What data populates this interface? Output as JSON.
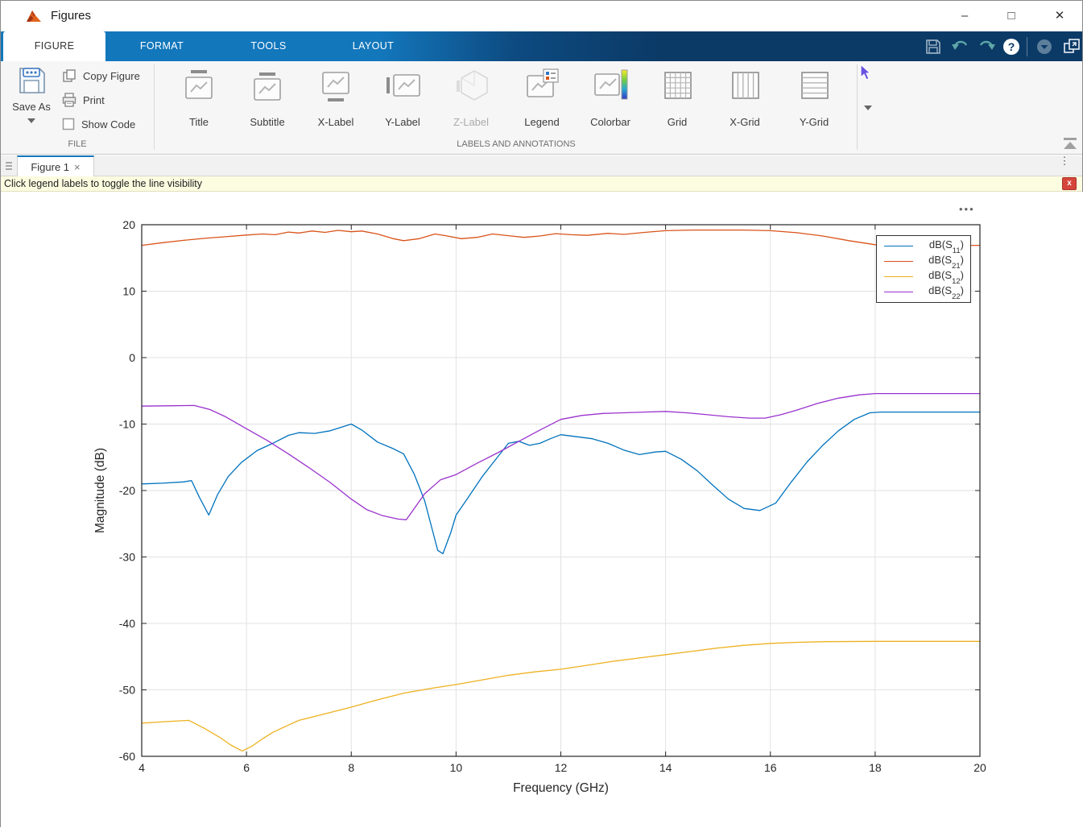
{
  "window": {
    "title": "Figures"
  },
  "ribbon_tabs": [
    {
      "label": "FIGURE",
      "active": true
    },
    {
      "label": "FORMAT",
      "active": false
    },
    {
      "label": "TOOLS",
      "active": false
    },
    {
      "label": "LAYOUT",
      "active": false
    }
  ],
  "ribbon": {
    "file_section": {
      "section_label": "FILE",
      "save_as": "Save As",
      "copy_figure": "Copy Figure",
      "print": "Print",
      "show_code": "Show Code",
      "show_code_checked": false
    },
    "labels_section": {
      "section_label": "LABELS AND ANNOTATIONS",
      "items": [
        {
          "label": "Title",
          "disabled": false
        },
        {
          "label": "Subtitle",
          "disabled": false
        },
        {
          "label": "X-Label",
          "disabled": false
        },
        {
          "label": "Y-Label",
          "disabled": false
        },
        {
          "label": "Z-Label",
          "disabled": true
        },
        {
          "label": "Legend",
          "disabled": false
        },
        {
          "label": "Colorbar",
          "disabled": false
        },
        {
          "label": "Grid",
          "disabled": false
        },
        {
          "label": "X-Grid",
          "disabled": false
        },
        {
          "label": "Y-Grid",
          "disabled": false
        }
      ]
    }
  },
  "doc_tab": {
    "label": "Figure 1",
    "close_glyph": "×"
  },
  "banner": {
    "text": "Click legend labels to toggle the line visibility",
    "close_glyph": "x"
  },
  "axes_toolbar": {
    "ellipsis": "•••"
  },
  "chart_data": {
    "type": "line",
    "xlabel": "Frequency (GHz)",
    "ylabel": "Magnitude (dB)",
    "xlim": [
      4,
      20
    ],
    "ylim": [
      -60,
      20
    ],
    "x_ticks": [
      4,
      6,
      8,
      10,
      12,
      14,
      16,
      18,
      20
    ],
    "x_tick_labels": [
      "4",
      "6",
      "8",
      "10",
      "12",
      "14",
      "16",
      "18",
      "20"
    ],
    "y_ticks": [
      20,
      10,
      0,
      -10,
      -20,
      -30,
      -40,
      -50,
      -60
    ],
    "y_tick_labels": [
      "20",
      "10",
      "0",
      "-10",
      "-20",
      "-30",
      "-40",
      "-50",
      "-60"
    ],
    "grid": true,
    "grid_color": "#E2E2E2",
    "axis_color": "#262626",
    "legend_position": "northeast",
    "series": [
      {
        "label": "dB(S11)",
        "label_prefix": "dB(S",
        "sub": "11",
        "label_suffix": ")",
        "color": "#0072BD",
        "points": [
          [
            4,
            -19
          ],
          [
            4.4,
            -18.9
          ],
          [
            4.8,
            -18.7
          ],
          [
            4.95,
            -18.5
          ],
          [
            5.1,
            -21
          ],
          [
            5.28,
            -23.7
          ],
          [
            5.45,
            -20.6
          ],
          [
            5.65,
            -17.9
          ],
          [
            5.9,
            -15.8
          ],
          [
            6.2,
            -14
          ],
          [
            6.5,
            -12.9
          ],
          [
            6.8,
            -11.7
          ],
          [
            7,
            -11.3
          ],
          [
            7.3,
            -11.4
          ],
          [
            7.6,
            -11
          ],
          [
            8,
            -10
          ],
          [
            8.2,
            -10.9
          ],
          [
            8.5,
            -12.7
          ],
          [
            8.8,
            -13.7
          ],
          [
            9,
            -14.5
          ],
          [
            9.2,
            -17.5
          ],
          [
            9.4,
            -21.5
          ],
          [
            9.55,
            -26
          ],
          [
            9.65,
            -29
          ],
          [
            9.75,
            -29.5
          ],
          [
            9.9,
            -26.3
          ],
          [
            10,
            -23.7
          ],
          [
            10.2,
            -21.4
          ],
          [
            10.5,
            -17.9
          ],
          [
            10.8,
            -14.9
          ],
          [
            11,
            -12.9
          ],
          [
            11.2,
            -12.6
          ],
          [
            11.4,
            -13.2
          ],
          [
            11.6,
            -12.9
          ],
          [
            11.8,
            -12.2
          ],
          [
            12,
            -11.6
          ],
          [
            12.3,
            -11.9
          ],
          [
            12.6,
            -12.2
          ],
          [
            12.9,
            -12.9
          ],
          [
            13.2,
            -13.9
          ],
          [
            13.5,
            -14.6
          ],
          [
            13.8,
            -14.2
          ],
          [
            14,
            -14.1
          ],
          [
            14.3,
            -15.3
          ],
          [
            14.6,
            -17
          ],
          [
            14.9,
            -19.2
          ],
          [
            15.2,
            -21.3
          ],
          [
            15.5,
            -22.7
          ],
          [
            15.8,
            -23
          ],
          [
            16.1,
            -21.9
          ],
          [
            16.4,
            -18.7
          ],
          [
            16.7,
            -15.7
          ],
          [
            17,
            -13.2
          ],
          [
            17.3,
            -11
          ],
          [
            17.6,
            -9.3
          ],
          [
            17.9,
            -8.3
          ],
          [
            18.1,
            -8.2
          ],
          [
            20,
            -8.2
          ]
        ]
      },
      {
        "label": "dB(S21)",
        "label_prefix": "dB(S",
        "sub": "21",
        "label_suffix": ")",
        "color": "#D95319",
        "points": [
          [
            4,
            16.9
          ],
          [
            4.4,
            17.3
          ],
          [
            4.8,
            17.65
          ],
          [
            5.2,
            17.95
          ],
          [
            5.6,
            18.2
          ],
          [
            6,
            18.45
          ],
          [
            6.3,
            18.6
          ],
          [
            6.55,
            18.5
          ],
          [
            6.8,
            18.9
          ],
          [
            7,
            18.75
          ],
          [
            7.25,
            19.05
          ],
          [
            7.5,
            18.85
          ],
          [
            7.75,
            19.15
          ],
          [
            8,
            18.95
          ],
          [
            8.2,
            19.05
          ],
          [
            8.5,
            18.6
          ],
          [
            8.8,
            17.9
          ],
          [
            9,
            17.6
          ],
          [
            9.3,
            17.9
          ],
          [
            9.6,
            18.6
          ],
          [
            9.8,
            18.35
          ],
          [
            10.1,
            17.9
          ],
          [
            10.4,
            18.1
          ],
          [
            10.7,
            18.6
          ],
          [
            11,
            18.35
          ],
          [
            11.3,
            18.1
          ],
          [
            11.6,
            18.3
          ],
          [
            11.9,
            18.65
          ],
          [
            12.2,
            18.5
          ],
          [
            12.5,
            18.4
          ],
          [
            12.9,
            18.7
          ],
          [
            13.2,
            18.55
          ],
          [
            13.6,
            18.85
          ],
          [
            14,
            19.1
          ],
          [
            14.5,
            19.2
          ],
          [
            15,
            19.2
          ],
          [
            15.5,
            19.2
          ],
          [
            16,
            19.1
          ],
          [
            16.5,
            18.8
          ],
          [
            17,
            18.3
          ],
          [
            17.5,
            17.6
          ],
          [
            18,
            17
          ],
          [
            18.4,
            16.85
          ],
          [
            19,
            16.85
          ],
          [
            20,
            16.9
          ]
        ]
      },
      {
        "label": "dB(S12)",
        "label_prefix": "dB(S",
        "sub": "12",
        "label_suffix": ")",
        "color": "#EDB120",
        "points": [
          [
            4,
            -55
          ],
          [
            4.4,
            -54.8
          ],
          [
            4.9,
            -54.6
          ],
          [
            5.2,
            -55.8
          ],
          [
            5.5,
            -57.2
          ],
          [
            5.7,
            -58.3
          ],
          [
            5.92,
            -59.2
          ],
          [
            6.1,
            -58.5
          ],
          [
            6.3,
            -57.4
          ],
          [
            6.5,
            -56.4
          ],
          [
            6.8,
            -55.3
          ],
          [
            7,
            -54.6
          ],
          [
            7.5,
            -53.6
          ],
          [
            8,
            -52.6
          ],
          [
            8.5,
            -51.5
          ],
          [
            9,
            -50.5
          ],
          [
            9.5,
            -49.8
          ],
          [
            10,
            -49.2
          ],
          [
            10.5,
            -48.5
          ],
          [
            11,
            -47.8
          ],
          [
            11.5,
            -47.3
          ],
          [
            12,
            -46.9
          ],
          [
            12.5,
            -46.3
          ],
          [
            13,
            -45.7
          ],
          [
            13.5,
            -45.2
          ],
          [
            14,
            -44.7
          ],
          [
            14.5,
            -44.2
          ],
          [
            15,
            -43.7
          ],
          [
            15.5,
            -43.3
          ],
          [
            16,
            -43
          ],
          [
            16.5,
            -42.85
          ],
          [
            17,
            -42.75
          ],
          [
            18,
            -42.7
          ],
          [
            19,
            -42.7
          ],
          [
            20,
            -42.7
          ]
        ]
      },
      {
        "label": "dB(S22)",
        "label_prefix": "dB(S",
        "sub": "22",
        "label_suffix": ")",
        "color": "#9A32CD",
        "points": [
          [
            4,
            -7.3
          ],
          [
            4.5,
            -7.25
          ],
          [
            5,
            -7.2
          ],
          [
            5.3,
            -7.8
          ],
          [
            5.6,
            -8.9
          ],
          [
            6,
            -10.7
          ],
          [
            6.4,
            -12.5
          ],
          [
            6.8,
            -14.5
          ],
          [
            7.2,
            -16.6
          ],
          [
            7.6,
            -18.8
          ],
          [
            8,
            -21.3
          ],
          [
            8.3,
            -22.9
          ],
          [
            8.6,
            -23.8
          ],
          [
            8.9,
            -24.3
          ],
          [
            9.05,
            -24.4
          ],
          [
            9.4,
            -20.5
          ],
          [
            9.7,
            -18.4
          ],
          [
            10,
            -17.6
          ],
          [
            10.4,
            -15.9
          ],
          [
            10.8,
            -14.3
          ],
          [
            11.2,
            -12.6
          ],
          [
            11.6,
            -10.9
          ],
          [
            12,
            -9.3
          ],
          [
            12.4,
            -8.7
          ],
          [
            12.8,
            -8.4
          ],
          [
            13.2,
            -8.3
          ],
          [
            13.6,
            -8.2
          ],
          [
            14,
            -8.1
          ],
          [
            14.4,
            -8.3
          ],
          [
            14.8,
            -8.6
          ],
          [
            15.2,
            -8.9
          ],
          [
            15.6,
            -9.1
          ],
          [
            15.9,
            -9.1
          ],
          [
            16.2,
            -8.6
          ],
          [
            16.5,
            -7.9
          ],
          [
            16.9,
            -6.9
          ],
          [
            17.3,
            -6.1
          ],
          [
            17.7,
            -5.6
          ],
          [
            18,
            -5.4
          ],
          [
            19,
            -5.4
          ],
          [
            20,
            -5.4
          ]
        ]
      }
    ]
  }
}
